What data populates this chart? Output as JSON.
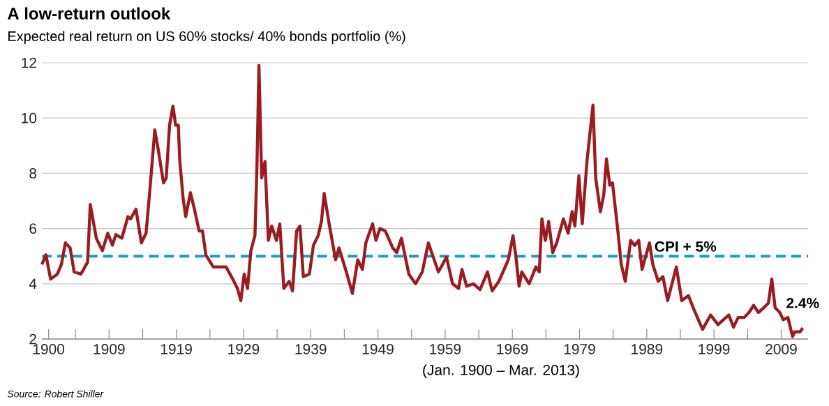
{
  "chart_data": {
    "type": "line",
    "title": "A low-return outlook",
    "subtitle": "Expected real return on US 60% stocks/ 40% bonds portfolio (%)",
    "xlabel": "(Jan. 1900 – Mar. 2013)",
    "x": [
      1899,
      1899.6,
      1900.3,
      1901.3,
      1901.9,
      1902.5,
      1903.2,
      1903.8,
      1904.8,
      1905.8,
      1906.2,
      1907.1,
      1908,
      1908.8,
      1909.5,
      1910,
      1910.9,
      1911.8,
      1912.2,
      1913,
      1913.8,
      1914.5,
      1915.1,
      1915.8,
      1916.3,
      1917.1,
      1917.5,
      1918,
      1918.5,
      1918.9,
      1919.3,
      1919.5,
      1920,
      1920.4,
      1921.1,
      1921.7,
      1922.4,
      1922.9,
      1923.4,
      1924.5,
      1926.4,
      1927.4,
      1928.1,
      1928.6,
      1929.1,
      1929.6,
      1930.1,
      1930.7,
      1931,
      1931.3,
      1931.7,
      1932.2,
      1932.7,
      1933.2,
      1933.9,
      1934.4,
      1935,
      1935.8,
      1936.3,
      1936.9,
      1937.4,
      1937.9,
      1938.8,
      1939.4,
      1940.1,
      1940.6,
      1941,
      1941.8,
      1942.7,
      1943.2,
      1944.3,
      1945.2,
      1946,
      1946.7,
      1947.2,
      1948.2,
      1948.7,
      1949.3,
      1950.1,
      1951.2,
      1951.8,
      1952.5,
      1953.6,
      1954.6,
      1955.6,
      1956.5,
      1956.9,
      1958,
      1959.2,
      1960.1,
      1961,
      1961.5,
      1962.2,
      1963.2,
      1964.2,
      1965.3,
      1966,
      1967,
      1968.4,
      1969.1,
      1969.5,
      1970,
      1970.4,
      1971.5,
      1972.5,
      1973,
      1973.4,
      1973.9,
      1974.4,
      1975,
      1975.6,
      1976.6,
      1977.3,
      1977.9,
      1978.3,
      1978.9,
      1979.4,
      1980.1,
      1980.6,
      1981,
      1981.4,
      1982.1,
      1982.6,
      1983,
      1983.5,
      1983.9,
      1984.7,
      1985.2,
      1985.8,
      1986.6,
      1987.2,
      1987.8,
      1988.3,
      1989.4,
      1989.9,
      1990.7,
      1991.4,
      1992.1,
      1993.4,
      1994.2,
      1995.2,
      1996.2,
      1997.3,
      1998.5,
      1999.6,
      2000.4,
      2001.2,
      2001.9,
      2002.6,
      2003.5,
      2004.2,
      2004.9,
      2005.6,
      2006.4,
      2007.1,
      2007.6,
      2008.1,
      2008.8,
      2009.3,
      2010,
      2010.7,
      2011,
      2011.8,
      2012.2
    ],
    "series": [
      {
        "color": "#9b1c20",
        "values": [
          4.7,
          5.05,
          4.17,
          4.35,
          4.7,
          5.48,
          5.3,
          4.43,
          4.35,
          4.78,
          6.87,
          5.65,
          5.2,
          5.83,
          5.4,
          5.78,
          5.65,
          6.43,
          6.35,
          6.7,
          5.48,
          5.83,
          7.48,
          9.57,
          8.87,
          7.65,
          7.83,
          9.74,
          10.43,
          9.74,
          9.74,
          8.52,
          7.13,
          6.43,
          7.3,
          6.7,
          5.91,
          5.91,
          5.04,
          4.61,
          4.61,
          4.17,
          3.83,
          3.39,
          4.35,
          3.83,
          5.2,
          5.74,
          8.26,
          11.9,
          7.83,
          8.43,
          5.57,
          6.09,
          5.57,
          6.17,
          3.83,
          4.09,
          3.74,
          5.91,
          6.09,
          4.26,
          4.35,
          5.39,
          5.74,
          6.26,
          7.27,
          6.09,
          4.87,
          5.3,
          4.43,
          3.65,
          4.87,
          4.52,
          5.48,
          6.17,
          5.57,
          6.0,
          5.91,
          5.3,
          5.13,
          5.65,
          4.35,
          4.0,
          4.43,
          5.48,
          5.2,
          4.43,
          4.96,
          4.0,
          3.83,
          4.52,
          3.91,
          4.0,
          3.79,
          4.43,
          3.74,
          4.09,
          4.87,
          5.74,
          5.04,
          3.91,
          4.43,
          4.0,
          4.61,
          4.43,
          6.35,
          5.57,
          6.26,
          5.13,
          5.48,
          6.35,
          5.83,
          6.61,
          6.09,
          7.91,
          6.17,
          8.43,
          9.57,
          10.47,
          7.83,
          6.61,
          7.22,
          8.52,
          7.57,
          7.65,
          5.91,
          4.7,
          4.09,
          5.57,
          5.39,
          5.57,
          4.52,
          5.48,
          4.7,
          4.09,
          4.26,
          3.39,
          4.61,
          3.39,
          3.57,
          2.96,
          2.35,
          2.87,
          2.52,
          2.7,
          2.87,
          2.43,
          2.78,
          2.78,
          2.96,
          3.22,
          2.96,
          3.13,
          3.3,
          4.17,
          3.13,
          2.96,
          2.7,
          2.78,
          2.09,
          2.26,
          2.26,
          2.4
        ]
      }
    ],
    "line_style": "solid",
    "marker": "none",
    "xlim": [
      1899,
      2013
    ],
    "ylim": [
      2,
      12
    ],
    "yticks": [
      2,
      4,
      6,
      8,
      10,
      12
    ],
    "xticks": [
      1900,
      {
        "value": 1904,
        "label": null
      },
      1909,
      {
        "value": 1914,
        "label": null
      },
      1919,
      {
        "value": 1924,
        "label": null
      },
      1929,
      {
        "value": 1934,
        "label": null
      },
      1939,
      {
        "value": 1944,
        "label": null
      },
      1949,
      {
        "value": 1954,
        "label": null
      },
      1959,
      {
        "value": 1964,
        "label": null
      },
      1969,
      {
        "value": 1974,
        "label": null
      },
      1979,
      {
        "value": 1984,
        "label": null
      },
      1989,
      {
        "value": 1994,
        "label": null
      },
      1999,
      {
        "value": 2004,
        "label": null
      },
      2009
    ],
    "grid": "y",
    "ref_lines": [
      {
        "axis": "y",
        "value": 5,
        "label": "CPI + 5%",
        "color": "#1a9bc4",
        "line_style": "dashed"
      }
    ],
    "annotations": [
      {
        "text": "2.4%",
        "x": 2012.2,
        "y": 2.4
      },
      "Source: Robert Shiller"
    ]
  }
}
